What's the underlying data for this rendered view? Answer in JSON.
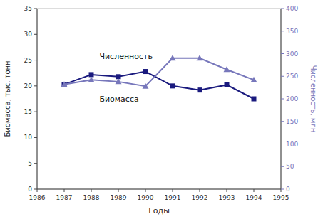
{
  "chart_data": {
    "type": "line",
    "x_label": "Годы",
    "y_label": "Биомасса, тыс. тонн",
    "y2_label": "Численность, млн",
    "x": [
      1987,
      1988,
      1989,
      1990,
      1991,
      1992,
      1993,
      1994
    ],
    "xlim": [
      1986,
      1995
    ],
    "xticks": [
      1986,
      1987,
      1988,
      1989,
      1990,
      1991,
      1992,
      1993,
      1994,
      1995
    ],
    "ylim": [
      0,
      35
    ],
    "yticks": [
      0,
      5,
      10,
      15,
      20,
      25,
      30,
      35
    ],
    "y2lim": [
      0,
      400
    ],
    "y2ticks": [
      0,
      50,
      100,
      150,
      200,
      250,
      300,
      350,
      400
    ],
    "grid": false,
    "series": [
      {
        "name": "Биомасса",
        "color": "#1a1a7e",
        "marker": "square",
        "line_style": "solid",
        "values": [
          20.3,
          22.2,
          21.8,
          22.8,
          20.0,
          19.2,
          20.2,
          17.5
        ]
      },
      {
        "name": "Численность",
        "color": "#7777bb",
        "marker": "triangle",
        "line_style": "solid",
        "axis": "y2",
        "values": [
          232,
          242,
          238,
          228,
          290,
          290,
          265,
          242
        ]
      }
    ],
    "annotations": [
      {
        "text": "Численность",
        "x": 1988.3,
        "y": 24.8
      },
      {
        "text": "Биомасса",
        "x": 1988.3,
        "y": 18.5
      }
    ]
  }
}
